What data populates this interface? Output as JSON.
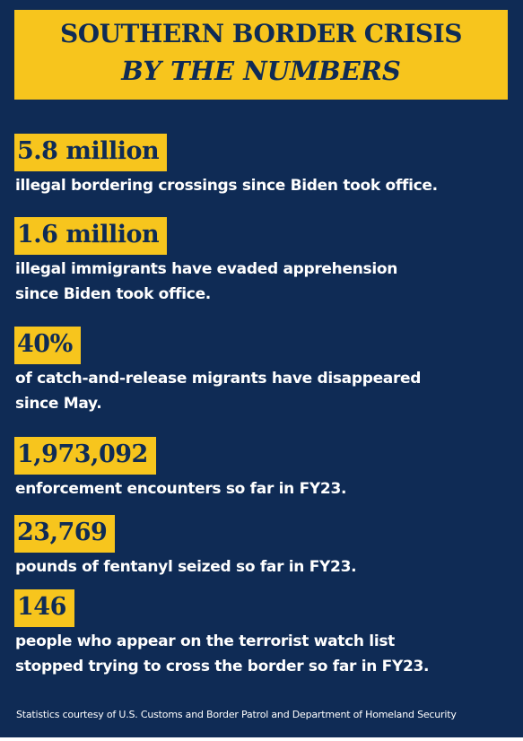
{
  "title": {
    "line1": "SOUTHERN BORDER CRISIS",
    "line2": "BY THE NUMBERS"
  },
  "stats": [
    {
      "value": "5.8 million",
      "lines": [
        "illegal bordering crossings since Biden took office."
      ]
    },
    {
      "value": "1.6 million",
      "lines": [
        "illegal immigrants have evaded apprehension",
        "since Biden took office."
      ]
    },
    {
      "value": "40%",
      "lines": [
        "of catch-and-release migrants have disappeared",
        "since May."
      ]
    },
    {
      "value": "1,973,092",
      "lines": [
        "enforcement encounters so far in FY23."
      ]
    },
    {
      "value": "23,769",
      "lines": [
        "pounds of fentanyl seized so far in FY23."
      ]
    },
    {
      "value": "146",
      "lines": [
        "people who appear on the terrorist watch list",
        "stopped trying to cross the border so far in FY23."
      ]
    }
  ],
  "footer": "Statistics courtesy of U.S. Customs and Border Patrol and Department of Homeland Security",
  "colors": {
    "background": "#0f2b55",
    "accent": "#f7c51d",
    "text": "#ffffff"
  }
}
